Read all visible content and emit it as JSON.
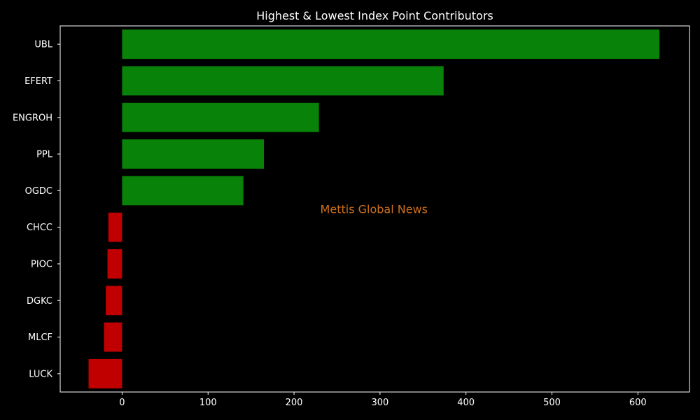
{
  "chart_data": {
    "type": "bar",
    "orientation": "horizontal",
    "title": "Highest & Lowest Index Point Contributors",
    "categories": [
      "UBL",
      "EFERT",
      "ENGROH",
      "PPL",
      "OGDC",
      "CHCC",
      "PIOC",
      "DGKC",
      "MLCF",
      "LUCK"
    ],
    "values": [
      625,
      374,
      229,
      165,
      141,
      -16,
      -17,
      -19,
      -21,
      -39
    ],
    "xlim": [
      -72,
      660
    ],
    "xticks": [
      0,
      100,
      200,
      300,
      400,
      500,
      600
    ],
    "xlabel": "",
    "ylabel": "",
    "grid": false,
    "positive_color": "#088208",
    "negative_color": "#c00000",
    "background_color": "#000000",
    "text_color": "#ffffff",
    "annotation": {
      "text": "Mettis Global News",
      "color": "#cc6f1d",
      "x": 293,
      "category_index": 4.5
    }
  }
}
